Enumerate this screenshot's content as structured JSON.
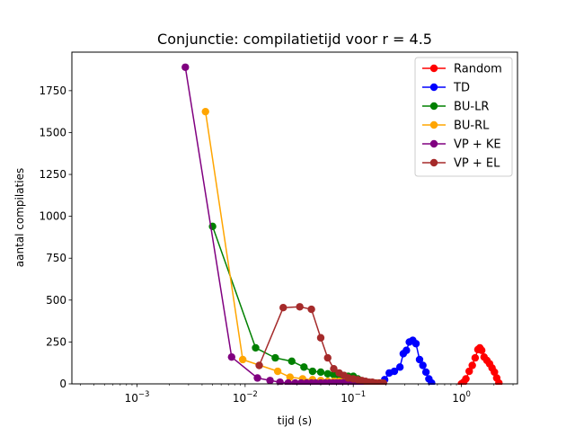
{
  "chart_data": {
    "type": "line",
    "title": "Conjunctie: compilatietijd voor r = 4.5",
    "xlabel": "tijd (s)",
    "ylabel": "aantal compilaties",
    "xscale": "log",
    "xlim": [
      0.00025,
      3.3
    ],
    "ylim": [
      0,
      1980
    ],
    "xticks": [
      {
        "value": 0.001,
        "base": "10",
        "exp": "−3"
      },
      {
        "value": 0.01,
        "base": "10",
        "exp": "−2"
      },
      {
        "value": 0.1,
        "base": "10",
        "exp": "−1"
      },
      {
        "value": 1,
        "base": "10",
        "exp": "0"
      }
    ],
    "yticks": [
      0,
      250,
      500,
      750,
      1000,
      1250,
      1500,
      1750
    ],
    "grid": false,
    "legend_position": "top-right",
    "series": [
      {
        "name": "Random",
        "color": "#ff0000",
        "x": [
          1.0,
          1.05,
          1.1,
          1.18,
          1.26,
          1.34,
          1.42,
          1.48,
          1.54,
          1.62,
          1.72,
          1.82,
          1.92,
          2.02,
          2.12,
          2.22
        ],
        "y": [
          0,
          10,
          30,
          75,
          110,
          155,
          205,
          215,
          200,
          160,
          140,
          120,
          95,
          70,
          35,
          5
        ]
      },
      {
        "name": "TD",
        "color": "#0000ff",
        "x": [
          0.17,
          0.195,
          0.215,
          0.24,
          0.27,
          0.29,
          0.31,
          0.33,
          0.355,
          0.38,
          0.41,
          0.44,
          0.47,
          0.5,
          0.53
        ],
        "y": [
          5,
          25,
          65,
          75,
          100,
          180,
          200,
          250,
          260,
          240,
          145,
          110,
          70,
          30,
          5
        ]
      },
      {
        "name": "BU-LR",
        "color": "#008000",
        "x": [
          0.005,
          0.0125,
          0.019,
          0.027,
          0.035,
          0.042,
          0.05,
          0.058,
          0.066,
          0.074,
          0.082,
          0.09,
          0.1,
          0.11,
          0.12
        ],
        "y": [
          940,
          215,
          155,
          135,
          100,
          75,
          70,
          60,
          55,
          50,
          50,
          45,
          45,
          30,
          10
        ]
      },
      {
        "name": "BU-RL",
        "color": "#ffa500",
        "x": [
          0.0043,
          0.0095,
          0.02,
          0.026,
          0.034,
          0.042,
          0.05,
          0.058,
          0.066,
          0.074,
          0.082,
          0.09,
          0.1,
          0.11,
          0.12,
          0.13,
          0.14,
          0.15,
          0.165,
          0.18
        ],
        "y": [
          1625,
          145,
          75,
          40,
          30,
          25,
          20,
          15,
          15,
          15,
          10,
          10,
          10,
          10,
          10,
          5,
          5,
          5,
          5,
          5
        ]
      },
      {
        "name": "VP + KE",
        "color": "#800080",
        "x": [
          0.0028,
          0.0075,
          0.013,
          0.017,
          0.021,
          0.025,
          0.029,
          0.033,
          0.037,
          0.041,
          0.045,
          0.05,
          0.055,
          0.06,
          0.065,
          0.07,
          0.075,
          0.08,
          0.085,
          0.09,
          0.095,
          0.1,
          0.105,
          0.11,
          0.115,
          0.12,
          0.125,
          0.13
        ],
        "y": [
          1890,
          160,
          35,
          20,
          10,
          5,
          5,
          5,
          5,
          5,
          5,
          5,
          5,
          5,
          5,
          5,
          5,
          5,
          5,
          5,
          5,
          5,
          5,
          5,
          5,
          5,
          5,
          5
        ]
      },
      {
        "name": "VP + EL",
        "color": "#a52a2a",
        "x": [
          0.0135,
          0.0225,
          0.032,
          0.041,
          0.05,
          0.058,
          0.066,
          0.074,
          0.082,
          0.09,
          0.1,
          0.11,
          0.12,
          0.13,
          0.14,
          0.15,
          0.16,
          0.175,
          0.19
        ],
        "y": [
          110,
          455,
          460,
          445,
          275,
          155,
          90,
          65,
          50,
          35,
          30,
          25,
          20,
          15,
          10,
          10,
          5,
          5,
          5
        ]
      }
    ]
  }
}
